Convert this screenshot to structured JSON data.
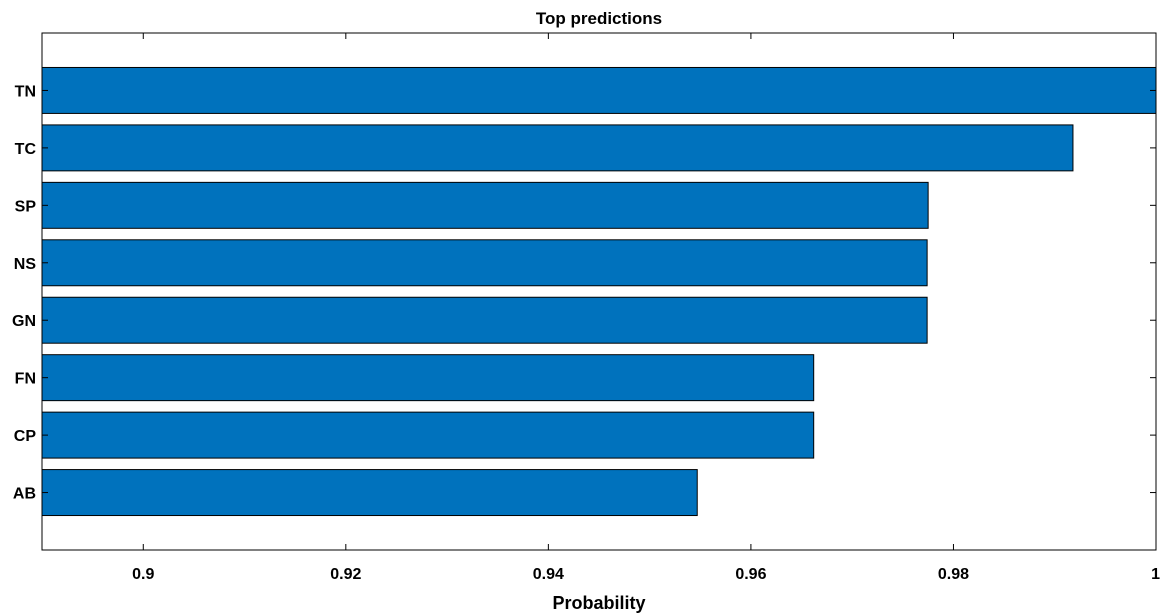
{
  "chart_data": {
    "type": "bar",
    "orientation": "horizontal",
    "title": "Top predictions",
    "xlabel": "Probability",
    "ylabel": "",
    "categories": [
      "TN",
      "TC",
      "SP",
      "NS",
      "GN",
      "FN",
      "CP",
      "AB"
    ],
    "values": [
      1.0,
      0.9918,
      0.9775,
      0.9774,
      0.9774,
      0.9662,
      0.9662,
      0.9547
    ],
    "xlim": [
      0.89,
      1.0
    ],
    "xticks": [
      "0.9",
      "0.92",
      "0.94",
      "0.96",
      "0.98",
      "1"
    ],
    "xtick_values": [
      0.9,
      0.92,
      0.94,
      0.96,
      0.98,
      1.0
    ],
    "bar_color": "#0072BD",
    "grid": false,
    "box": true
  }
}
